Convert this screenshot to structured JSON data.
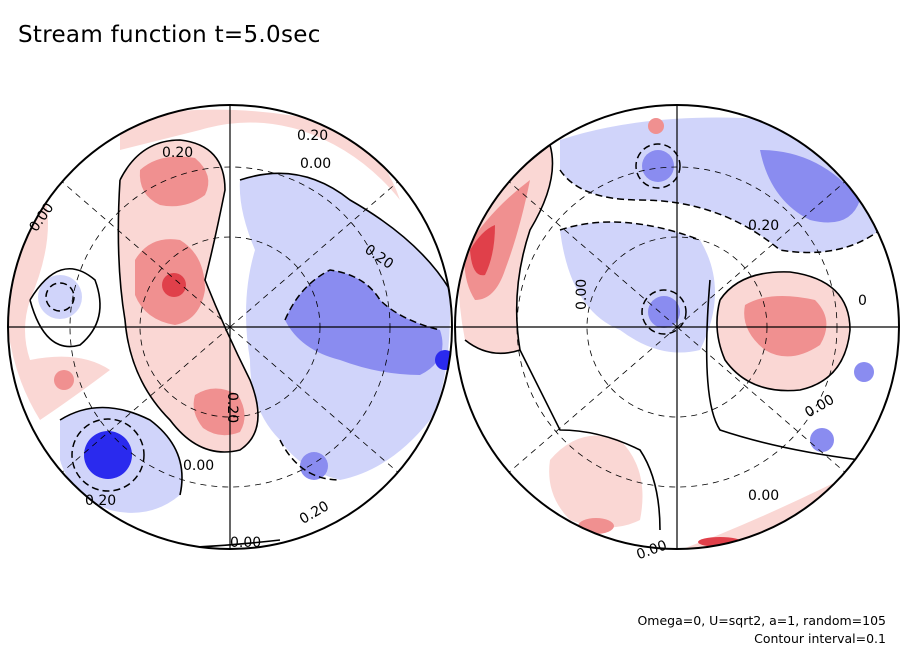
{
  "title": "Stream function t=5.0sec",
  "footer": {
    "params": "Omega=0, U=sqrt2, a=1, random=105",
    "contour": "Contour interval=0.1"
  },
  "colors": {
    "positive_strong": "#e0404a",
    "positive_mid": "#f09090",
    "positive_light": "#fad7d4",
    "negative_strong": "#2a2aee",
    "negative_mid": "#8a8cf0",
    "negative_light": "#d0d4fa",
    "background": "#ffffff",
    "contour": "#000000"
  },
  "contour_labels": {
    "left": [
      "0.20",
      "0.20",
      "0.00",
      "0.00",
      "0.20",
      "0.20",
      "0.00",
      "0.20",
      "0.20",
      "0.00"
    ],
    "right": [
      "0.20",
      "0.00",
      "0.00",
      "0.00",
      "0.00",
      "0"
    ]
  }
}
